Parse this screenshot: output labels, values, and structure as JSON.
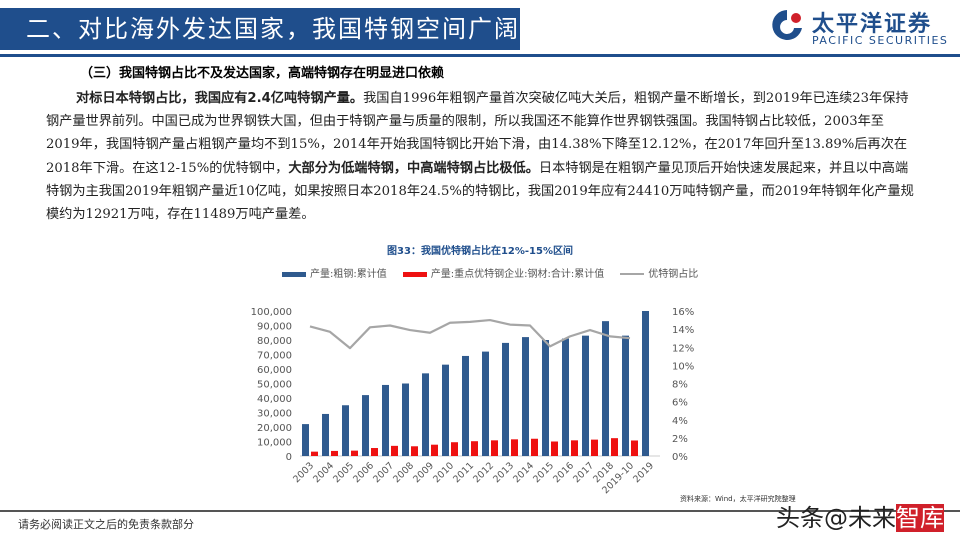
{
  "header": {
    "title": "二、对比海外发达国家，我国特钢空间广阔",
    "logo_cn": "太平洋证券",
    "logo_en": "PACIFIC SECURITIES"
  },
  "section": {
    "subtitle": "（三）我国特钢占比不及发达国家，高端特钢存在明显进口依赖",
    "para_bold1": "对标日本特钢占比，我国应有2.4亿吨特钢产量。",
    "para_text1": "我国自1996年粗钢产量首次突破亿吨大关后，粗钢产量不断增长，到2019年已连续23年保持钢产量世界前列。中国已成为世界钢铁大国，但由于特钢产量与质量的限制，所以我国还不能算作世界钢铁强国。我国特钢占比较低，2003年至2019年，我国特钢产量占粗钢产量均不到15%，2014年开始我国特钢比开始下滑，由14.38%下降至12.12%，在2017年回升至13.89%后再次在2018年下滑。在这12-15%的优特钢中，",
    "para_bold2": "大部分为低端特钢，中高端特钢占比极低。",
    "para_text2": "日本特钢是在粗钢产量见顶后开始快速发展起来，并且以中高端特钢为主我国2019年粗钢产量近10亿吨，如果按照日本2018年24.5%的特钢比，我国2019年应有24410万吨特钢产量，而2019年特钢年化产量规模约为12921万吨，存在11489万吨产量差。"
  },
  "chart_data": {
    "type": "bar",
    "title": "图33：我国优特钢占比在12%-15%区间",
    "categories": [
      "2003",
      "2004",
      "2005",
      "2006",
      "2007",
      "2008",
      "2009",
      "2010",
      "2011",
      "2012",
      "2013",
      "2014",
      "2015",
      "2016",
      "2017",
      "2018",
      "2019-10",
      "2019"
    ],
    "series": [
      {
        "name": "产量:粗钢:累计值",
        "type": "bar",
        "axis": "left",
        "color": "#2f5a8e",
        "values": [
          22000,
          29000,
          35000,
          42000,
          49000,
          50000,
          57000,
          63000,
          69000,
          72000,
          78000,
          82000,
          80000,
          81000,
          83000,
          93000,
          83000,
          100000
        ]
      },
      {
        "name": "产量:重点优特钢企业:钢材:合计:累计值",
        "type": "bar",
        "axis": "left",
        "color": "#ee1111",
        "values": [
          3000,
          3500,
          3700,
          5500,
          7000,
          6700,
          7800,
          9500,
          10200,
          10800,
          11500,
          11900,
          10000,
          10800,
          11300,
          12300,
          10700,
          null
        ]
      },
      {
        "name": "优特钢占比",
        "type": "line",
        "axis": "right",
        "color": "#a6a6a6",
        "values": [
          14.3,
          13.7,
          11.9,
          14.2,
          14.4,
          13.9,
          13.6,
          14.7,
          14.8,
          15.0,
          14.5,
          14.4,
          12.1,
          13.2,
          13.9,
          13.2,
          13.0,
          null
        ]
      }
    ],
    "ylim": [
      0,
      100000
    ],
    "yticks": [
      "0",
      "10,000",
      "20,000",
      "30,000",
      "40,000",
      "50,000",
      "60,000",
      "70,000",
      "80,000",
      "90,000",
      "100,000"
    ],
    "y2lim": [
      0,
      16
    ],
    "y2ticks": [
      "0%",
      "2%",
      "4%",
      "6%",
      "8%",
      "10%",
      "12%",
      "14%",
      "16%"
    ],
    "legend": "top",
    "grid": false
  },
  "source": "资料来源：Wind，太平洋研究院整理",
  "footer": "请务必阅读正文之后的免责条款部分",
  "watermark": {
    "text": "头条@未来",
    "box": "智库"
  }
}
